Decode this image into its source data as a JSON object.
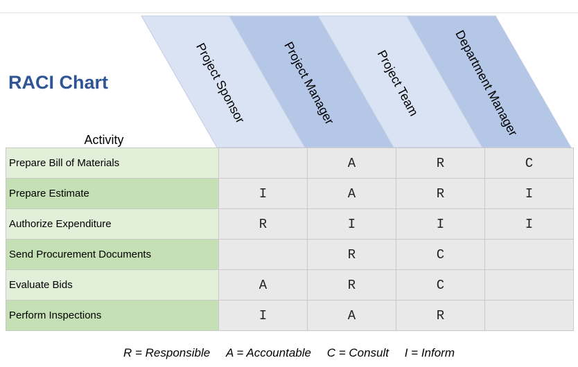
{
  "title": "RACI Chart",
  "activity_header": "Activity",
  "roles": [
    "Project Sponsor",
    "Project Manager",
    "Project Team",
    "Department Manager"
  ],
  "role_colors": [
    "#dae3f3",
    "#b4c7e7",
    "#dae3f3",
    "#b4c7e7"
  ],
  "rows": [
    {
      "activity": "Prepare Bill of Materials",
      "cells": [
        "",
        "A",
        "R",
        "C"
      ]
    },
    {
      "activity": "Prepare Estimate",
      "cells": [
        "I",
        "A",
        "R",
        "I"
      ]
    },
    {
      "activity": "Authorize Expenditure",
      "cells": [
        "R",
        "I",
        "I",
        "I"
      ]
    },
    {
      "activity": "Send Procurement Documents",
      "cells": [
        "",
        "R",
        "C",
        ""
      ]
    },
    {
      "activity": "Evaluate Bids",
      "cells": [
        "A",
        "R",
        "C",
        ""
      ]
    },
    {
      "activity": "Perform Inspections",
      "cells": [
        "I",
        "A",
        "R",
        ""
      ]
    }
  ],
  "legend": [
    "R = Responsible",
    "A = Accountable",
    "C = Consult",
    "I = Inform"
  ]
}
